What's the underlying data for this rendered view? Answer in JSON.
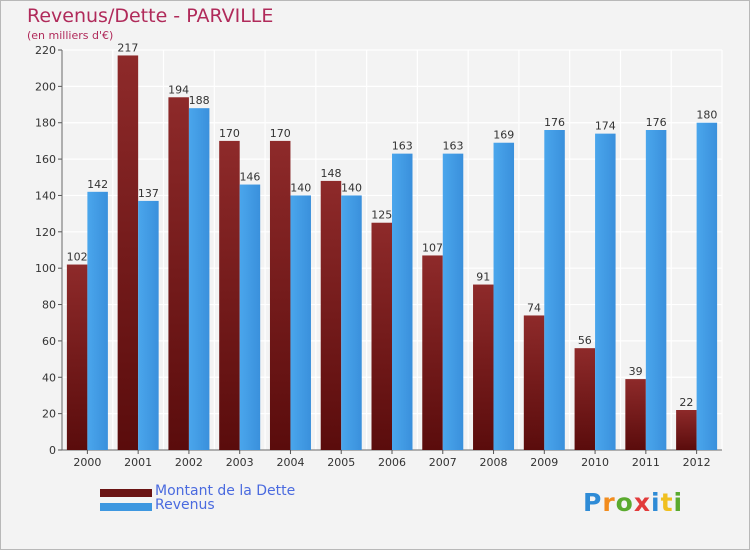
{
  "title": "Revenus/Dette - PARVILLE",
  "subtitle": "(en milliers d'€)",
  "brand": {
    "letters": [
      "P",
      "r",
      "o",
      "x",
      "i",
      "t",
      "i"
    ],
    "colors": [
      "#2e8bd6",
      "#f28c1e",
      "#5aaa2e",
      "#e23b3b",
      "#2e8bd6",
      "#f0c020",
      "#5aaa2e"
    ]
  },
  "chart_data": {
    "type": "bar",
    "categories": [
      "2000",
      "2001",
      "2002",
      "2003",
      "2004",
      "2005",
      "2006",
      "2007",
      "2008",
      "2009",
      "2010",
      "2011",
      "2012"
    ],
    "series": [
      {
        "name": "Montant de la Dette",
        "values": [
          102,
          217,
          194,
          170,
          170,
          148,
          125,
          107,
          91,
          74,
          56,
          39,
          22
        ],
        "color": "#7a1e1e"
      },
      {
        "name": "Revenus",
        "values": [
          142,
          137,
          188,
          146,
          140,
          140,
          163,
          163,
          169,
          176,
          174,
          176,
          180
        ],
        "color": "#3d97e0"
      }
    ],
    "ylim": [
      0,
      220
    ],
    "yticks": [
      0,
      20,
      40,
      60,
      80,
      100,
      120,
      140,
      160,
      180,
      200,
      220
    ],
    "grid": true,
    "legend_position": "bottom-left"
  }
}
